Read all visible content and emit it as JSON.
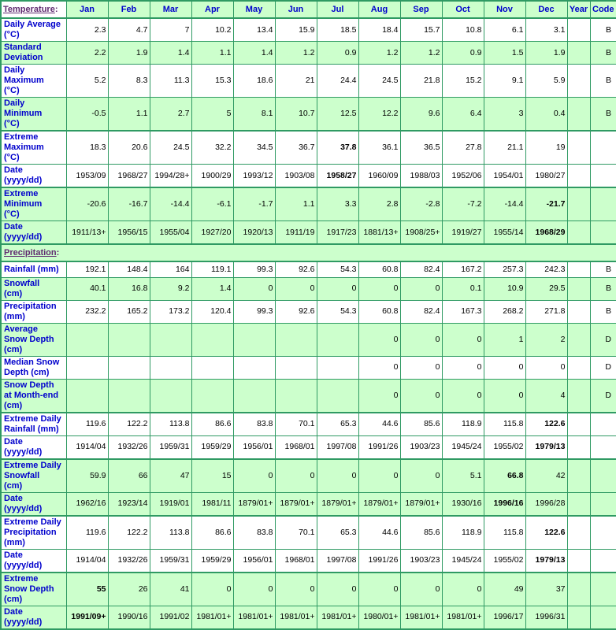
{
  "table": {
    "colon": ":",
    "months": [
      "Jan",
      "Feb",
      "Mar",
      "Apr",
      "May",
      "Jun",
      "Jul",
      "Aug",
      "Sep",
      "Oct",
      "Nov",
      "Dec"
    ],
    "year_header": "Year",
    "code_header": "Code",
    "sections": [
      {
        "title": "Temperature",
        "rows": [
          {
            "label": "Daily Average\n(°C)",
            "values": [
              "2.3",
              "4.7",
              "7",
              "10.2",
              "13.4",
              "15.9",
              "18.5",
              "18.4",
              "15.7",
              "10.8",
              "6.1",
              "3.1"
            ],
            "code": "B",
            "bg": "white",
            "h": "h2",
            "bold": []
          },
          {
            "label": "Standard\nDeviation",
            "values": [
              "2.2",
              "1.9",
              "1.4",
              "1.1",
              "1.4",
              "1.2",
              "0.9",
              "1.2",
              "1.2",
              "0.9",
              "1.5",
              "1.9"
            ],
            "code": "B",
            "bg": "green",
            "h": "h2",
            "bold": []
          },
          {
            "label": "Daily\nMaximum\n(°C)",
            "values": [
              "5.2",
              "8.3",
              "11.3",
              "15.3",
              "18.6",
              "21",
              "24.4",
              "24.5",
              "21.8",
              "15.2",
              "9.1",
              "5.9"
            ],
            "code": "B",
            "bg": "white",
            "h": "h3",
            "bold": []
          },
          {
            "label": "Daily\nMinimum\n(°C)",
            "values": [
              "-0.5",
              "1.1",
              "2.7",
              "5",
              "8.1",
              "10.7",
              "12.5",
              "12.2",
              "9.6",
              "6.4",
              "3",
              "0.4"
            ],
            "code": "B",
            "bg": "green",
            "h": "h3",
            "bold": []
          },
          {
            "label": "Extreme\nMaximum\n(°C)",
            "values": [
              "18.3",
              "20.6",
              "24.5",
              "32.2",
              "34.5",
              "36.7",
              "37.8",
              "36.1",
              "36.5",
              "27.8",
              "21.1",
              "19"
            ],
            "code": "",
            "bg": "white",
            "h": "h3",
            "group_start": true,
            "bold": [
              6
            ]
          },
          {
            "label": "Date\n(yyyy/dd)",
            "values": [
              "1953/09",
              "1968/27",
              "1994/28+",
              "1900/29",
              "1993/12",
              "1903/08",
              "1958/27",
              "1960/09",
              "1988/03",
              "1952/06",
              "1954/01",
              "1980/27"
            ],
            "code": "",
            "bg": "white",
            "h": "h2",
            "bold": [
              6
            ]
          },
          {
            "label": "Extreme\nMinimum\n(°C)",
            "values": [
              "-20.6",
              "-16.7",
              "-14.4",
              "-6.1",
              "-1.7",
              "1.1",
              "3.3",
              "2.8",
              "-2.8",
              "-7.2",
              "-14.4",
              "-21.7"
            ],
            "code": "",
            "bg": "green",
            "h": "h3",
            "group_start": true,
            "bold": [
              11
            ]
          },
          {
            "label": "Date\n(yyyy/dd)",
            "values": [
              "1911/13+",
              "1956/15",
              "1955/04",
              "1927/20",
              "1920/13",
              "1911/19",
              "1917/23",
              "1881/13+",
              "1908/25+",
              "1919/27",
              "1955/14",
              "1968/29"
            ],
            "code": "",
            "bg": "green",
            "h": "h2",
            "bold": [
              11
            ]
          }
        ]
      },
      {
        "title": "Precipitation",
        "rows": [
          {
            "label": "Rainfall (mm)",
            "values": [
              "192.1",
              "148.4",
              "164",
              "119.1",
              "99.3",
              "92.6",
              "54.3",
              "60.8",
              "82.4",
              "167.2",
              "257.3",
              "242.3"
            ],
            "code": "B",
            "bg": "white",
            "h": "h1",
            "bold": []
          },
          {
            "label": "Snowfall\n(cm)",
            "values": [
              "40.1",
              "16.8",
              "9.2",
              "1.4",
              "0",
              "0",
              "0",
              "0",
              "0",
              "0.1",
              "10.9",
              "29.5"
            ],
            "code": "B",
            "bg": "green",
            "h": "h2",
            "bold": []
          },
          {
            "label": "Precipitation\n(mm)",
            "values": [
              "232.2",
              "165.2",
              "173.2",
              "120.4",
              "99.3",
              "92.6",
              "54.3",
              "60.8",
              "82.4",
              "167.3",
              "268.2",
              "271.8"
            ],
            "code": "B",
            "bg": "white",
            "h": "h2",
            "bold": []
          },
          {
            "label": "Average\nSnow Depth\n(cm)",
            "values": [
              "",
              "",
              "",
              "",
              "",
              "",
              "",
              "0",
              "0",
              "0",
              "1",
              "2"
            ],
            "code": "D",
            "bg": "green",
            "h": "h3",
            "bold": []
          },
          {
            "label": "Median Snow\nDepth (cm)",
            "values": [
              "",
              "",
              "",
              "",
              "",
              "",
              "",
              "0",
              "0",
              "0",
              "0",
              "0"
            ],
            "code": "D",
            "bg": "white",
            "h": "h2",
            "bold": []
          },
          {
            "label": "Snow Depth\nat Month-end\n(cm)",
            "values": [
              "",
              "",
              "",
              "",
              "",
              "",
              "",
              "0",
              "0",
              "0",
              "0",
              "4"
            ],
            "code": "D",
            "bg": "green",
            "h": "h3",
            "bold": []
          },
          {
            "label": "Extreme Daily\nRainfall (mm)",
            "values": [
              "119.6",
              "122.2",
              "113.8",
              "86.6",
              "83.8",
              "70.1",
              "65.3",
              "44.6",
              "85.6",
              "118.9",
              "115.8",
              "122.6"
            ],
            "code": "",
            "bg": "white",
            "h": "h2",
            "group_start": true,
            "bold": [
              11
            ]
          },
          {
            "label": "Date\n(yyyy/dd)",
            "values": [
              "1914/04",
              "1932/26",
              "1959/31",
              "1959/29",
              "1956/01",
              "1968/01",
              "1997/08",
              "1991/26",
              "1903/23",
              "1945/24",
              "1955/02",
              "1979/13"
            ],
            "code": "",
            "bg": "white",
            "h": "h2",
            "bold": [
              11
            ]
          },
          {
            "label": "Extreme Daily\nSnowfall\n(cm)",
            "values": [
              "59.9",
              "66",
              "47",
              "15",
              "0",
              "0",
              "0",
              "0",
              "0",
              "5.1",
              "66.8",
              "42"
            ],
            "code": "",
            "bg": "green",
            "h": "h3",
            "group_start": true,
            "bold": [
              10
            ]
          },
          {
            "label": "Date\n(yyyy/dd)",
            "values": [
              "1962/16",
              "1923/14",
              "1919/01",
              "1981/11",
              "1879/01+",
              "1879/01+",
              "1879/01+",
              "1879/01+",
              "1879/01+",
              "1930/16",
              "1996/16",
              "1996/28"
            ],
            "code": "",
            "bg": "green",
            "h": "h2",
            "bold": [
              10
            ]
          },
          {
            "label": "Extreme Daily\nPrecipitation\n(mm)",
            "values": [
              "119.6",
              "122.2",
              "113.8",
              "86.6",
              "83.8",
              "70.1",
              "65.3",
              "44.6",
              "85.6",
              "118.9",
              "115.8",
              "122.6"
            ],
            "code": "",
            "bg": "white",
            "h": "h3",
            "group_start": true,
            "bold": [
              11
            ]
          },
          {
            "label": "Date\n(yyyy/dd)",
            "values": [
              "1914/04",
              "1932/26",
              "1959/31",
              "1959/29",
              "1956/01",
              "1968/01",
              "1997/08",
              "1991/26",
              "1903/23",
              "1945/24",
              "1955/02",
              "1979/13"
            ],
            "code": "",
            "bg": "white",
            "h": "h2",
            "bold": [
              11
            ]
          },
          {
            "label": "Extreme\nSnow Depth\n(cm)",
            "values": [
              "55",
              "26",
              "41",
              "0",
              "0",
              "0",
              "0",
              "0",
              "0",
              "0",
              "49",
              "37"
            ],
            "code": "",
            "bg": "green",
            "h": "h3",
            "group_start": true,
            "bold": [
              0
            ]
          },
          {
            "label": "Date\n(yyyy/dd)",
            "values": [
              "1991/09+",
              "1990/16",
              "1991/02",
              "1981/01+",
              "1981/01+",
              "1981/01+",
              "1981/01+",
              "1980/01+",
              "1981/01+",
              "1981/01+",
              "1996/17",
              "1996/31"
            ],
            "code": "",
            "bg": "green",
            "h": "h2",
            "bold": [
              0
            ]
          }
        ]
      }
    ]
  }
}
